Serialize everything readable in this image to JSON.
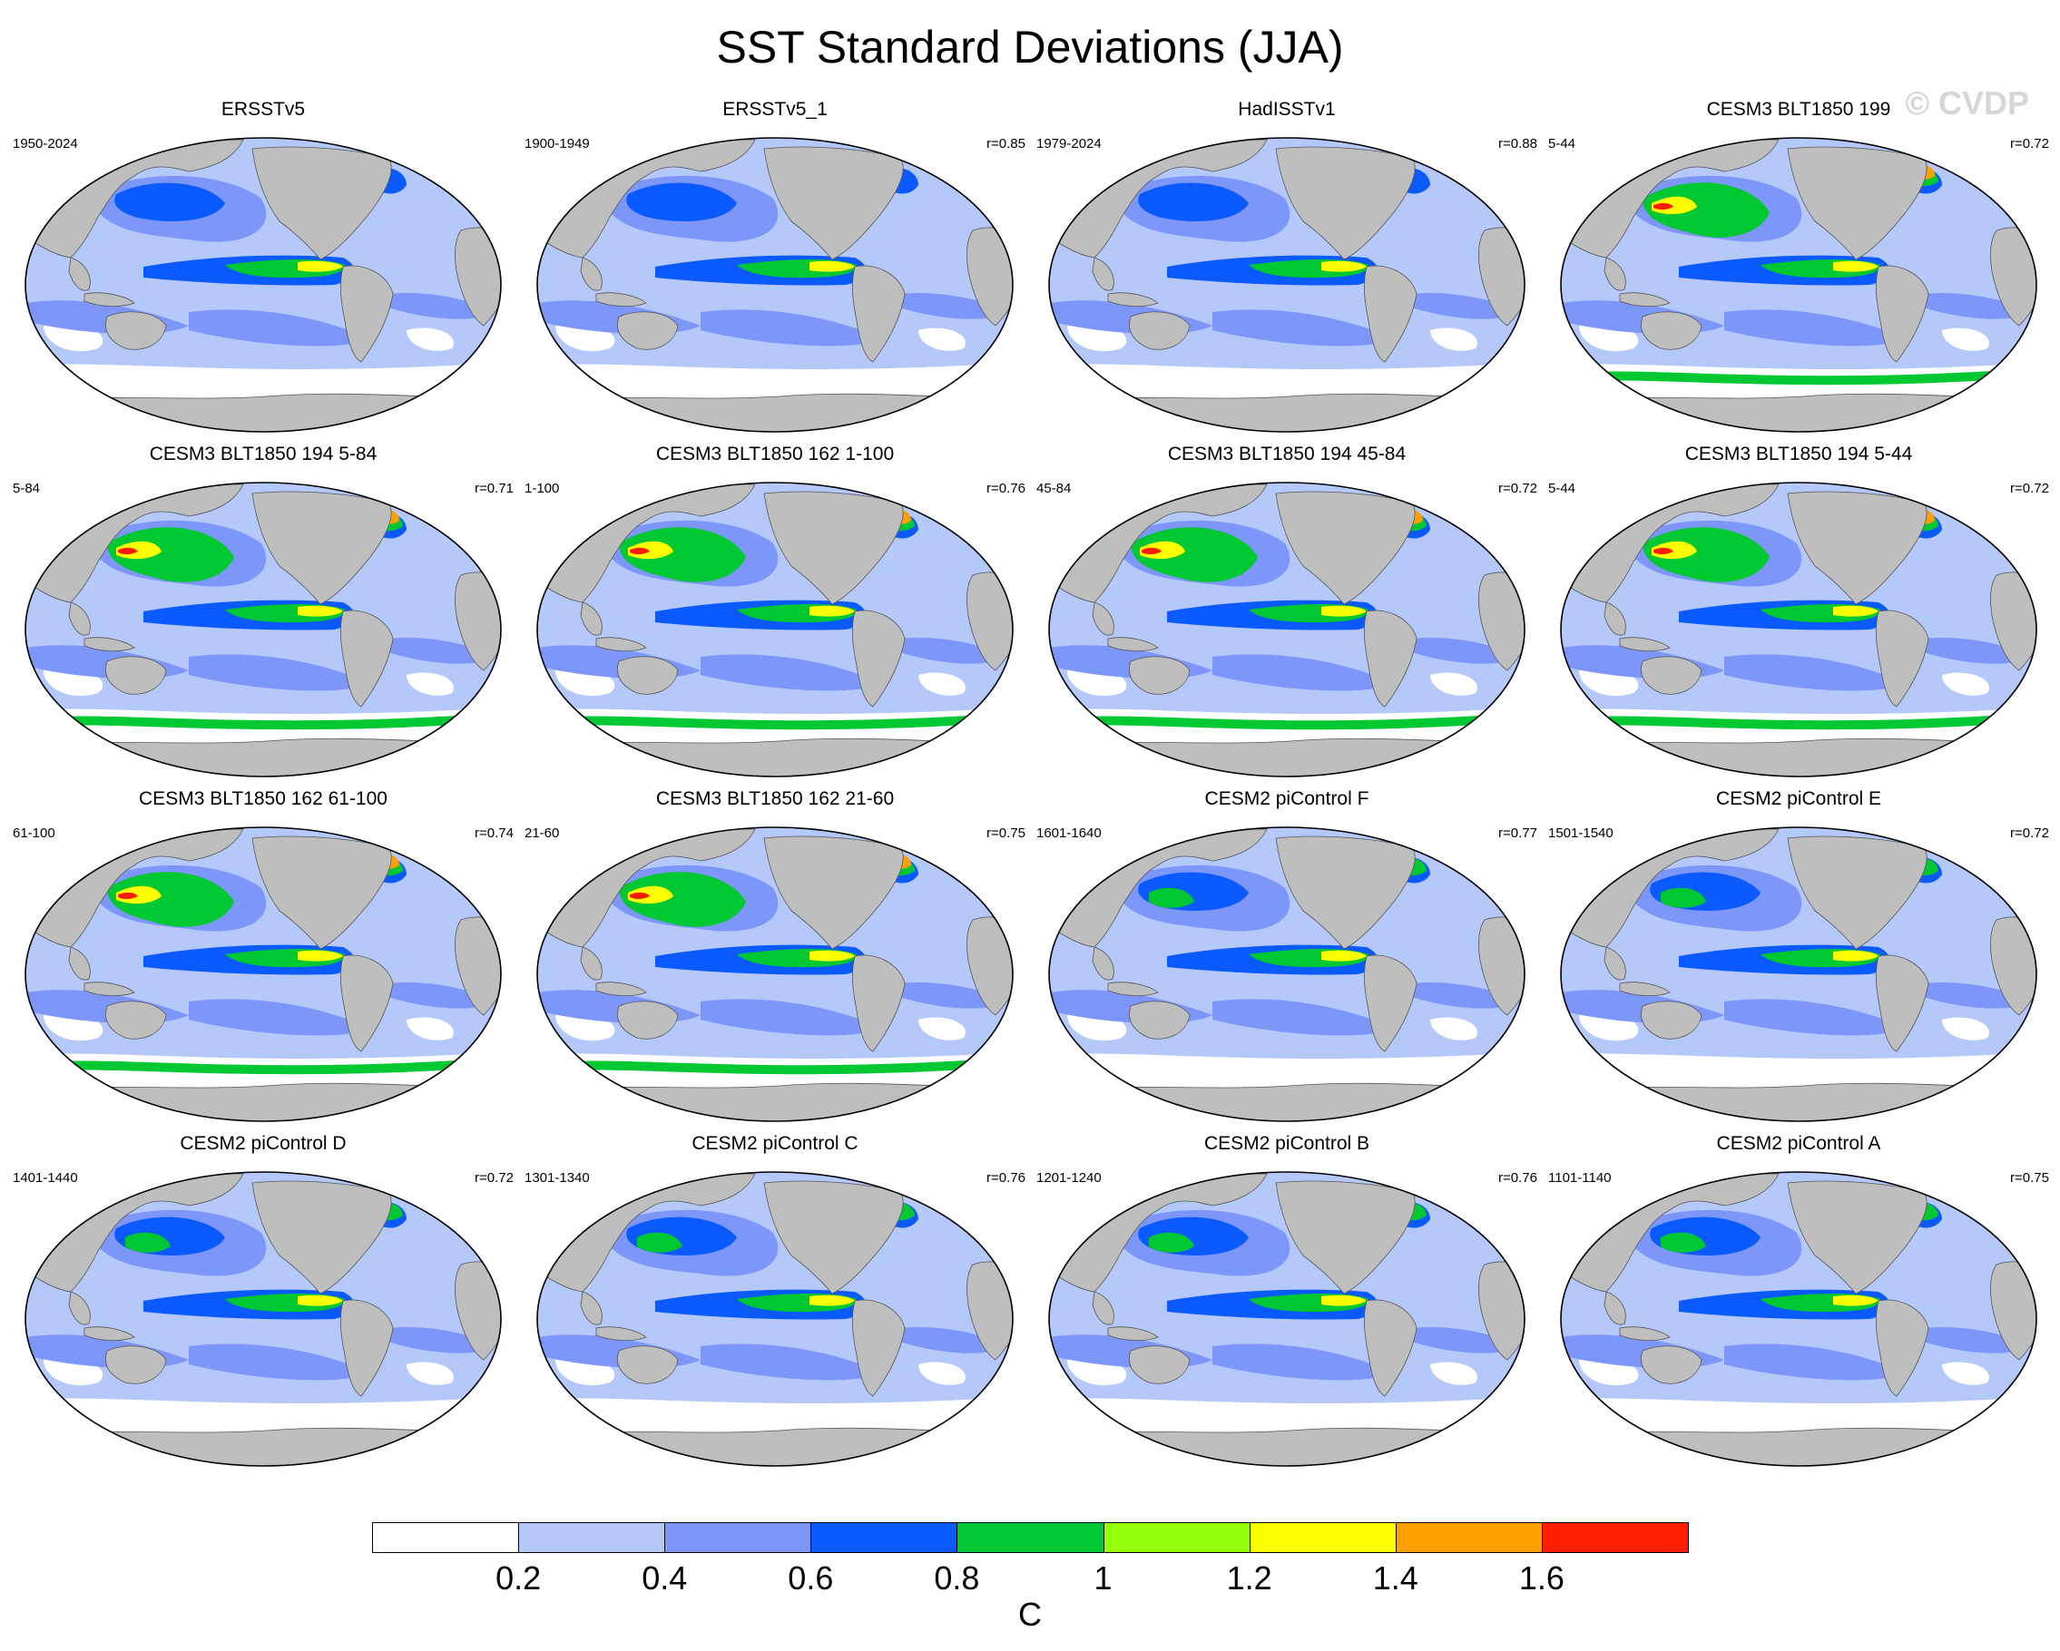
{
  "figure": {
    "title": "SST Standard Deviations (JJA)",
    "watermark": "© CVDP"
  },
  "panels": [
    {
      "title": "ERSSTv5",
      "period": "1950-2024",
      "corr": "",
      "variant": "obs"
    },
    {
      "title": "ERSSTv5_1",
      "period": "1900-1949",
      "corr": "r=0.85",
      "variant": "obs"
    },
    {
      "title": "HadISSTv1",
      "period": "1979-2024",
      "corr": "r=0.88",
      "variant": "obs"
    },
    {
      "title": "CESM3 BLT1850 199",
      "period": "5-44",
      "corr": "r=0.72",
      "variant": "cesm3"
    },
    {
      "title": "CESM3 BLT1850 194 5-84",
      "period": "5-84",
      "corr": "r=0.71",
      "variant": "cesm3"
    },
    {
      "title": "CESM3 BLT1850 162 1-100",
      "period": "1-100",
      "corr": "r=0.76",
      "variant": "cesm3"
    },
    {
      "title": "CESM3 BLT1850 194 45-84",
      "period": "45-84",
      "corr": "r=0.72",
      "variant": "cesm3"
    },
    {
      "title": "CESM3 BLT1850 194 5-44",
      "period": "5-44",
      "corr": "r=0.72",
      "variant": "cesm3"
    },
    {
      "title": "CESM3 BLT1850 162 61-100",
      "period": "61-100",
      "corr": "r=0.74",
      "variant": "cesm3"
    },
    {
      "title": "CESM3 BLT1850 162 21-60",
      "period": "21-60",
      "corr": "r=0.75",
      "variant": "cesm3"
    },
    {
      "title": "CESM2 piControl F",
      "period": "1601-1640",
      "corr": "r=0.77",
      "variant": "cesm2"
    },
    {
      "title": "CESM2 piControl E",
      "period": "1501-1540",
      "corr": "r=0.72",
      "variant": "cesm2"
    },
    {
      "title": "CESM2 piControl D",
      "period": "1401-1440",
      "corr": "r=0.72",
      "variant": "cesm2"
    },
    {
      "title": "CESM2 piControl C",
      "period": "1301-1340",
      "corr": "r=0.76",
      "variant": "cesm2"
    },
    {
      "title": "CESM2 piControl B",
      "period": "1201-1240",
      "corr": "r=0.76",
      "variant": "cesm2"
    },
    {
      "title": "CESM2 piControl A",
      "period": "1101-1140",
      "corr": "r=0.75",
      "variant": "cesm2"
    }
  ],
  "colors": {
    "land": "#bebebe",
    "coast": "#555555",
    "levels": [
      "#ffffff",
      "#b4c8fa",
      "#7d96fa",
      "#0a5aff",
      "#00c832",
      "#96ff0a",
      "#ffff00",
      "#ffa000",
      "#ff1e00"
    ]
  },
  "colorbar": {
    "ticks": [
      "0.2",
      "0.4",
      "0.6",
      "0.8",
      "1",
      "1.2",
      "1.4",
      "1.6"
    ],
    "unit": "C"
  }
}
